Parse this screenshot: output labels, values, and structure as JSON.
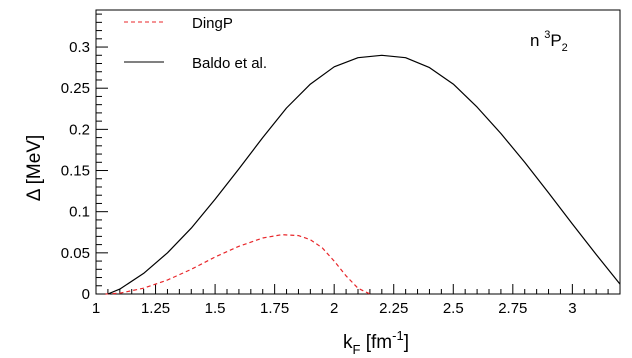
{
  "chart_data": {
    "type": "line",
    "title": "",
    "annotation": {
      "base": "n ",
      "sup": "3",
      "main": "P",
      "sub": "2"
    },
    "xlabel": {
      "base": "k",
      "sub": "F",
      "unit_pre": " [fm",
      "sup": "-1",
      "unit_post": "]"
    },
    "ylabel": "Δ [MeV]",
    "xlim": [
      1.0,
      3.2
    ],
    "ylim": [
      0.0,
      0.345
    ],
    "xticks": [
      1,
      1.25,
      1.5,
      1.75,
      2,
      2.25,
      2.5,
      2.75,
      3
    ],
    "xtick_labels": [
      "1",
      "1.25",
      "1.5",
      "1.75",
      "2",
      "2.25",
      "2.5",
      "2.75",
      "3"
    ],
    "yticks": [
      0,
      0.05,
      0.1,
      0.15,
      0.2,
      0.25,
      0.3
    ],
    "ytick_labels": [
      "0",
      "0.05",
      "0.1",
      "0.15",
      "0.2",
      "0.25",
      "0.3"
    ],
    "grid": false,
    "legend_position": "top-left",
    "series": [
      {
        "name": "DingP",
        "color": "#e8262a",
        "dash": "dashed",
        "x": [
          1.04,
          1.1,
          1.2,
          1.3,
          1.4,
          1.5,
          1.6,
          1.7,
          1.78,
          1.85,
          1.9,
          1.95,
          2.0,
          2.05,
          2.1,
          2.15
        ],
        "y": [
          0.0,
          0.001,
          0.007,
          0.017,
          0.03,
          0.045,
          0.058,
          0.068,
          0.072,
          0.071,
          0.066,
          0.056,
          0.04,
          0.022,
          0.007,
          0.0
        ]
      },
      {
        "name": "Baldo et al.",
        "color": "#000000",
        "dash": "solid",
        "x": [
          1.05,
          1.1,
          1.2,
          1.3,
          1.4,
          1.5,
          1.6,
          1.7,
          1.8,
          1.9,
          2.0,
          2.1,
          2.2,
          2.3,
          2.4,
          2.5,
          2.6,
          2.7,
          2.8,
          2.9,
          3.0,
          3.1,
          3.2
        ],
        "y": [
          0.0,
          0.006,
          0.025,
          0.05,
          0.08,
          0.115,
          0.152,
          0.19,
          0.226,
          0.255,
          0.276,
          0.287,
          0.29,
          0.287,
          0.275,
          0.255,
          0.227,
          0.195,
          0.16,
          0.123,
          0.085,
          0.048,
          0.012
        ]
      }
    ]
  }
}
